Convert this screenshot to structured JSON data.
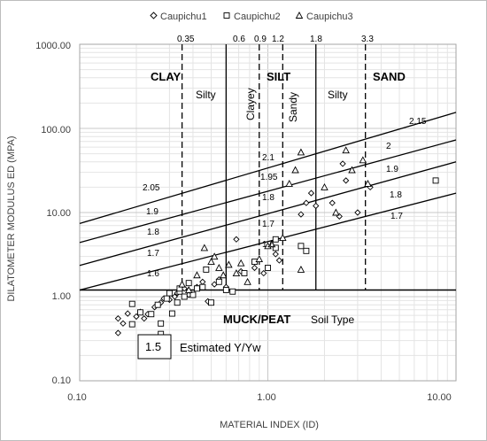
{
  "chart_data": {
    "type": "scatter",
    "xlabel": "MATERIAL INDEX (ID)",
    "ylabel": "DILATOMETER MODULUS ED (MPA)",
    "x_scale": "log",
    "y_scale": "log",
    "xlim": [
      0.1,
      10
    ],
    "ylim": [
      0.1,
      1000
    ],
    "x_ticks": [
      "0.10",
      "1.00",
      "10.00"
    ],
    "y_ticks": [
      "1000.00",
      "100.00",
      "10.00",
      "1.00",
      "0.10"
    ],
    "grid": true,
    "legend_position": "top",
    "series": [
      {
        "name": "Caupichu1",
        "marker": "diamond",
        "points": [
          [
            0.16,
            0.37
          ],
          [
            0.16,
            0.55
          ],
          [
            0.17,
            0.48
          ],
          [
            0.18,
            0.63
          ],
          [
            0.2,
            0.58
          ],
          [
            0.21,
            0.66
          ],
          [
            0.22,
            0.55
          ],
          [
            0.23,
            0.62
          ],
          [
            0.25,
            0.75
          ],
          [
            0.27,
            0.85
          ],
          [
            0.28,
            0.95
          ],
          [
            0.3,
            0.92
          ],
          [
            0.32,
            1.0
          ],
          [
            0.33,
            1.1
          ],
          [
            0.36,
            1.25
          ],
          [
            0.38,
            1.05
          ],
          [
            0.42,
            1.3
          ],
          [
            0.45,
            1.5
          ],
          [
            0.48,
            0.88
          ],
          [
            0.52,
            1.4
          ],
          [
            0.55,
            1.6
          ],
          [
            0.6,
            1.3
          ],
          [
            0.68,
            4.8
          ],
          [
            0.72,
            2.0
          ],
          [
            0.85,
            2.2
          ],
          [
            0.95,
            1.9
          ],
          [
            1.1,
            3.2
          ],
          [
            1.15,
            2.7
          ],
          [
            1.5,
            9.5
          ],
          [
            1.6,
            13
          ],
          [
            1.7,
            17
          ],
          [
            1.8,
            12
          ],
          [
            2.2,
            13
          ],
          [
            2.4,
            9
          ],
          [
            2.5,
            38
          ],
          [
            2.6,
            24
          ],
          [
            3.0,
            10
          ],
          [
            3.5,
            20
          ]
        ]
      },
      {
        "name": "Caupichu2",
        "marker": "square",
        "points": [
          [
            0.19,
            0.82
          ],
          [
            0.19,
            0.47
          ],
          [
            0.21,
            0.65
          ],
          [
            0.24,
            0.62
          ],
          [
            0.26,
            0.8
          ],
          [
            0.27,
            0.48
          ],
          [
            0.27,
            0.36
          ],
          [
            0.29,
            0.95
          ],
          [
            0.3,
            1.1
          ],
          [
            0.31,
            0.63
          ],
          [
            0.33,
            0.85
          ],
          [
            0.34,
            1.15
          ],
          [
            0.34,
            1.25
          ],
          [
            0.36,
            1.0
          ],
          [
            0.38,
            1.45
          ],
          [
            0.4,
            1.05
          ],
          [
            0.42,
            1.25
          ],
          [
            0.45,
            1.3
          ],
          [
            0.47,
            2.1
          ],
          [
            0.5,
            0.85
          ],
          [
            0.55,
            1.5
          ],
          [
            0.6,
            1.2
          ],
          [
            0.65,
            1.15
          ],
          [
            0.75,
            1.9
          ],
          [
            0.85,
            2.6
          ],
          [
            1.0,
            2.2
          ],
          [
            1.1,
            4.8
          ],
          [
            1.1,
            3.8
          ],
          [
            1.5,
            4.0
          ],
          [
            1.6,
            3.5
          ],
          [
            7.8,
            24
          ]
        ]
      },
      {
        "name": "Caupichu3",
        "marker": "triangle",
        "points": [
          [
            0.35,
            1.4
          ],
          [
            0.38,
            1.2
          ],
          [
            0.42,
            1.8
          ],
          [
            0.46,
            3.8
          ],
          [
            0.5,
            2.6
          ],
          [
            0.52,
            3.0
          ],
          [
            0.55,
            2.2
          ],
          [
            0.58,
            1.8
          ],
          [
            0.62,
            2.4
          ],
          [
            0.68,
            1.9
          ],
          [
            0.72,
            2.5
          ],
          [
            0.78,
            1.5
          ],
          [
            0.9,
            2.8
          ],
          [
            1.0,
            4.0
          ],
          [
            1.05,
            4.2
          ],
          [
            1.2,
            5.0
          ],
          [
            1.3,
            22
          ],
          [
            1.4,
            32
          ],
          [
            1.5,
            2.1
          ],
          [
            1.5,
            52
          ],
          [
            2.0,
            20
          ],
          [
            2.3,
            10
          ],
          [
            2.6,
            55
          ],
          [
            2.8,
            32
          ],
          [
            3.2,
            42
          ],
          [
            3.4,
            22
          ]
        ]
      }
    ],
    "boundaries": [
      {
        "x": 0.35,
        "label": "0.35",
        "style": "dashed"
      },
      {
        "x": 0.6,
        "label": "0.6",
        "style": "solid"
      },
      {
        "x": 0.9,
        "label": "0.9",
        "style": "dashed"
      },
      {
        "x": 1.2,
        "label": "1.2",
        "style": "dashed"
      },
      {
        "x": 1.8,
        "label": "1.8",
        "style": "solid"
      },
      {
        "x": 3.3,
        "label": "3.3",
        "style": "dashed"
      }
    ],
    "muck_peat_line_y": 1.2,
    "unit_weight_lines": [
      {
        "y_at_x01": 7.4,
        "y_at_x10": 155,
        "left_label": "2.05",
        "right_label": "2.15",
        "mid_label": "2.1"
      },
      {
        "y_at_x01": 4.4,
        "y_at_x10": 73,
        "left_label": "1.9",
        "right_label": "2",
        "mid_label": "1.95"
      },
      {
        "y_at_x01": 2.35,
        "y_at_x10": 40,
        "left_label": "1.8",
        "right_label": "1.9",
        "mid_label": "1.8"
      },
      {
        "y_at_x01": 1.2,
        "y_at_x10": 17,
        "left_label": "1.7",
        "right_label": "1.8",
        "mid_label": "1.7"
      }
    ],
    "family_labels_extra": [
      "1.6",
      "1.6",
      "1.7"
    ],
    "zone_labels": [
      "CLAY",
      "SILT",
      "SAND",
      "MUCK/PEAT"
    ],
    "soil_sub_labels": [
      "Silty",
      "Clayey",
      "Sandy",
      "Silty"
    ],
    "soil_type_label": "Soil Type",
    "estimated_note": {
      "value": "1.5",
      "label": "Estimated Y/Yw"
    }
  }
}
